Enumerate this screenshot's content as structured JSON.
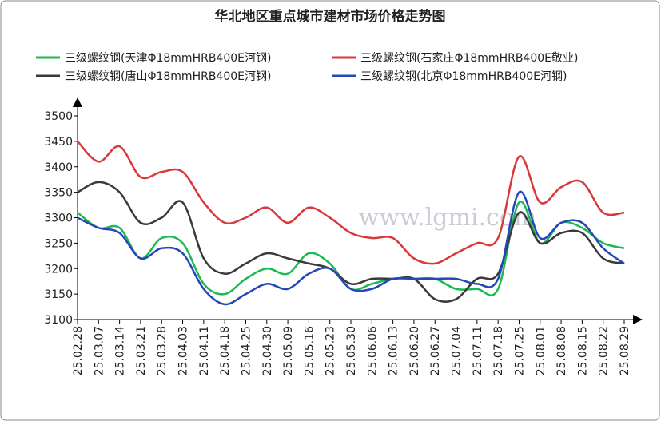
{
  "chart_data": {
    "type": "line",
    "title": "华北地区重点城市建材市场价格走势图",
    "watermark": "www.lgmi.com",
    "categories": [
      "25.02.28",
      "25.03.07",
      "25.03.14",
      "25.03.21",
      "25.03.28",
      "25.04.03",
      "25.04.11",
      "25.04.18",
      "25.04.25",
      "25.04.30",
      "25.05.09",
      "25.05.16",
      "25.05.23",
      "25.05.30",
      "25.06.06",
      "25.06.13",
      "25.06.20",
      "25.06.27",
      "25.07.04",
      "25.07.11",
      "25.07.18",
      "25.07.25",
      "25.08.01",
      "25.08.08",
      "25.08.15",
      "25.08.22",
      "25.08.29"
    ],
    "series": [
      {
        "name": "三级螺纹钢(天津Φ18mmHRB400E河钢)",
        "color": "#1db954",
        "values": [
          3310,
          3280,
          3280,
          3220,
          3260,
          3250,
          3170,
          3150,
          3180,
          3200,
          3190,
          3230,
          3210,
          3160,
          3170,
          3180,
          3180,
          3180,
          3160,
          3160,
          3160,
          3330,
          3250,
          3290,
          3280,
          3250,
          3240
        ]
      },
      {
        "name": "三级螺纹钢(石家庄Φ18mmHRB400E敬业)",
        "color": "#d9393b",
        "values": [
          3450,
          3410,
          3440,
          3380,
          3390,
          3390,
          3330,
          3290,
          3300,
          3320,
          3290,
          3320,
          3300,
          3270,
          3260,
          3260,
          3220,
          3210,
          3230,
          3250,
          3260,
          3420,
          3330,
          3360,
          3370,
          3310,
          3310
        ]
      },
      {
        "name": "三级螺纹钢(唐山Φ18mmHRB400E河钢)",
        "color": "#3a3a3a",
        "values": [
          3350,
          3370,
          3350,
          3290,
          3300,
          3330,
          3220,
          3190,
          3210,
          3230,
          3220,
          3210,
          3200,
          3170,
          3180,
          3180,
          3180,
          3140,
          3140,
          3180,
          3190,
          3310,
          3250,
          3270,
          3270,
          3220,
          3210
        ]
      },
      {
        "name": "三级螺纹钢(北京Φ18mmHRB400E河钢)",
        "color": "#2448b8",
        "values": [
          3300,
          3280,
          3270,
          3220,
          3240,
          3230,
          3160,
          3130,
          3150,
          3170,
          3160,
          3190,
          3200,
          3160,
          3160,
          3180,
          3180,
          3180,
          3180,
          3170,
          3180,
          3350,
          3260,
          3290,
          3290,
          3240,
          3210
        ]
      }
    ],
    "ylim": [
      3100,
      3500
    ],
    "yticks": [
      3100,
      3150,
      3200,
      3250,
      3300,
      3350,
      3400,
      3450,
      3500
    ]
  }
}
